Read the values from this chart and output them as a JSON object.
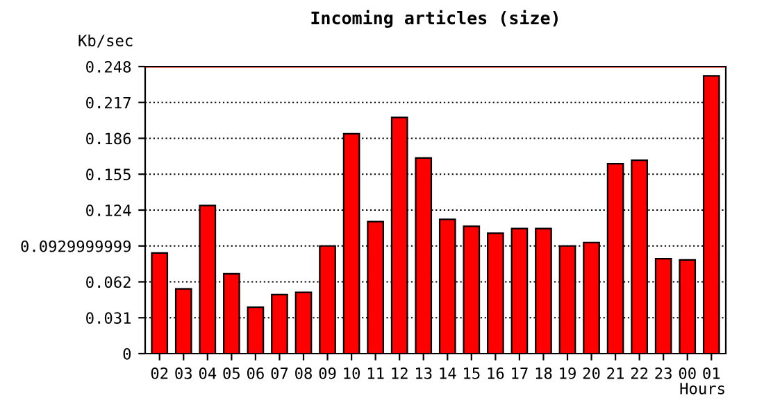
{
  "chart_data": {
    "type": "bar",
    "title": "Incoming articles (size)",
    "ylabel": "Kb/sec",
    "xlabel": "Hours",
    "categories": [
      "02",
      "03",
      "04",
      "05",
      "06",
      "07",
      "08",
      "09",
      "10",
      "11",
      "12",
      "13",
      "14",
      "15",
      "16",
      "17",
      "18",
      "19",
      "20",
      "21",
      "22",
      "23",
      "00",
      "01"
    ],
    "series": [
      {
        "color": "#ff0000",
        "values": [
          0.087,
          0.056,
          0.128,
          0.069,
          0.04,
          0.051,
          0.053,
          0.093,
          0.19,
          0.114,
          0.204,
          0.169,
          0.116,
          0.11,
          0.104,
          0.108,
          0.108,
          0.093,
          0.096,
          0.164,
          0.167,
          0.082,
          0.081,
          0.24
        ]
      }
    ],
    "ylim": [
      0,
      0.248
    ],
    "yticks": [
      0,
      0.031,
      0.062,
      0.0929999999,
      0.124,
      0.155,
      0.186,
      0.217,
      0.248
    ],
    "grid": "y",
    "line_style": "dotted",
    "ref_lines": [
      {
        "axis": "y",
        "value": 0.248,
        "color": "#ff0000"
      }
    ]
  }
}
